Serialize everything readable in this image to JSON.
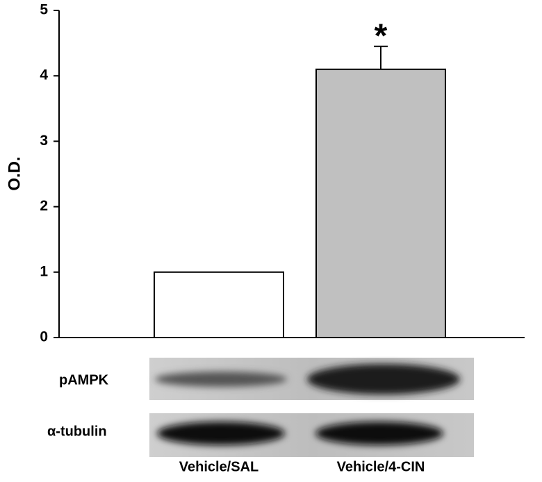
{
  "chart_data": {
    "type": "bar",
    "ylabel": "O.D.",
    "categories": [
      "Vehicle/SAL",
      "Vehicle/4-CIN"
    ],
    "values": [
      1,
      4.1
    ],
    "errors": [
      null,
      0.35
    ],
    "colors": [
      "#ffffff",
      "#c0c0c0"
    ],
    "annotations": [
      {
        "text": "*"
      }
    ],
    "ylim": [
      0,
      5
    ],
    "yticks": [
      0,
      1,
      2,
      3,
      4,
      5
    ],
    "blot_labels": [
      "pAMPK",
      "α-tubulin"
    ]
  }
}
